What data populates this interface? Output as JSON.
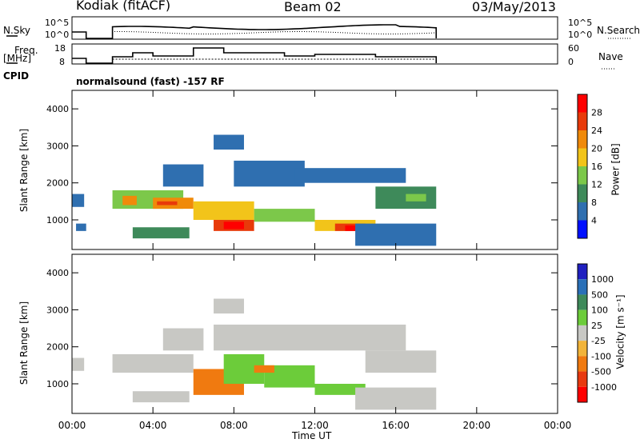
{
  "header": {
    "station": "Kodiak (fitACF)",
    "beam": "Beam 02",
    "date": "03/May/2013"
  },
  "nsky_panel": {
    "left_label": "N.Sky",
    "right_label": "N.Search",
    "y_ticks_left": [
      "10^5",
      "10^0"
    ],
    "y_ticks_right": [
      "10^5",
      "10^0"
    ]
  },
  "freq_panel": {
    "left_label_line1": "Freq.",
    "left_label_line2": "[MHz]",
    "right_label": "Nave",
    "y_ticks_left": [
      "18",
      "8"
    ],
    "y_ticks_right": [
      "60",
      "0"
    ]
  },
  "cpid": {
    "label": "CPID",
    "text": "normalsound (fast) -157 RF"
  },
  "power_panel": {
    "ylabel": "Slant Range [km]",
    "y_ticks": [
      "4000",
      "3000",
      "2000",
      "1000"
    ],
    "colorbar_label": "Power [dB]",
    "colorbar_ticks": [
      "28",
      "24",
      "20",
      "16",
      "12",
      "8",
      "4"
    ],
    "colors": [
      "#ff0000",
      "#e83a0a",
      "#f08a0a",
      "#f2c41a",
      "#7cc84a",
      "#3e8a5a",
      "#2f6fb0",
      "#0010ff"
    ]
  },
  "velocity_panel": {
    "ylabel": "Slant Range [km]",
    "y_ticks": [
      "4000",
      "3000",
      "2000",
      "1000"
    ],
    "colorbar_label": "Velocity [m s⁻¹]",
    "colorbar_ticks": [
      "1000",
      "500",
      "100",
      "25",
      "-25",
      "-100",
      "-500",
      "-1000"
    ],
    "colors": [
      "#2020c0",
      "#2a70b8",
      "#3e8a5a",
      "#6ccc3a",
      "#c8c8c4",
      "#f2b43a",
      "#f07a10",
      "#e83a10",
      "#ff0000"
    ]
  },
  "x_axis": {
    "label": "Time UT",
    "ticks": [
      "00:00",
      "04:00",
      "08:00",
      "12:00",
      "16:00",
      "20:00",
      "00:00"
    ]
  },
  "chart_data": {
    "type": "heatmap",
    "x_range_hours": [
      0,
      24
    ],
    "y_range_km": [
      200,
      4500
    ],
    "data_end_hour": 18,
    "power_regions": [
      {
        "t0": 0.0,
        "t1": 0.6,
        "r0": 1350,
        "r1": 1700,
        "level": 6
      },
      {
        "t0": 0.2,
        "t1": 0.7,
        "r0": 700,
        "r1": 900,
        "level": 6
      },
      {
        "t0": 2.0,
        "t1": 5.5,
        "r0": 1300,
        "r1": 1800,
        "level": 4
      },
      {
        "t0": 2.5,
        "t1": 3.2,
        "r0": 1400,
        "r1": 1650,
        "level": 2
      },
      {
        "t0": 4.0,
        "t1": 6.0,
        "r0": 1300,
        "r1": 1600,
        "level": 2
      },
      {
        "t0": 4.2,
        "t1": 5.2,
        "r0": 1400,
        "r1": 1500,
        "level": 1
      },
      {
        "t0": 3.0,
        "t1": 5.8,
        "r0": 500,
        "r1": 800,
        "level": 5
      },
      {
        "t0": 4.5,
        "t1": 6.5,
        "r0": 1900,
        "r1": 2500,
        "level": 6
      },
      {
        "t0": 6.0,
        "t1": 9.0,
        "r0": 1000,
        "r1": 1500,
        "level": 3
      },
      {
        "t0": 7.0,
        "t1": 9.0,
        "r0": 700,
        "r1": 1000,
        "level": 1
      },
      {
        "t0": 7.5,
        "t1": 8.5,
        "r0": 750,
        "r1": 950,
        "level": 0
      },
      {
        "t0": 9.0,
        "t1": 12.0,
        "r0": 950,
        "r1": 1300,
        "level": 4
      },
      {
        "t0": 12.0,
        "t1": 15.0,
        "r0": 700,
        "r1": 1000,
        "level": 3
      },
      {
        "t0": 13.0,
        "t1": 14.5,
        "r0": 700,
        "r1": 900,
        "level": 1
      },
      {
        "t0": 13.5,
        "t1": 14.0,
        "r0": 700,
        "r1": 850,
        "level": 0
      },
      {
        "t0": 7.0,
        "t1": 8.5,
        "r0": 2900,
        "r1": 3300,
        "level": 6
      },
      {
        "t0": 8.0,
        "t1": 11.5,
        "r0": 1900,
        "r1": 2600,
        "level": 6
      },
      {
        "t0": 11.0,
        "t1": 16.5,
        "r0": 2000,
        "r1": 2400,
        "level": 6
      },
      {
        "t0": 15.0,
        "t1": 18.0,
        "r0": 1300,
        "r1": 1900,
        "level": 5
      },
      {
        "t0": 16.5,
        "t1": 17.5,
        "r0": 1500,
        "r1": 1700,
        "level": 4
      },
      {
        "t0": 14.0,
        "t1": 18.0,
        "r0": 300,
        "r1": 900,
        "level": 6
      }
    ],
    "velocity_regions": [
      {
        "t0": 0.0,
        "t1": 0.6,
        "r0": 1350,
        "r1": 1700,
        "level": 4
      },
      {
        "t0": 2.0,
        "t1": 6.0,
        "r0": 1300,
        "r1": 1800,
        "level": 4
      },
      {
        "t0": 3.0,
        "t1": 5.8,
        "r0": 500,
        "r1": 800,
        "level": 4
      },
      {
        "t0": 4.5,
        "t1": 6.5,
        "r0": 1900,
        "r1": 2500,
        "level": 4
      },
      {
        "t0": 6.0,
        "t1": 8.5,
        "r0": 700,
        "r1": 1400,
        "level": 6
      },
      {
        "t0": 7.5,
        "t1": 9.5,
        "r0": 1000,
        "r1": 1800,
        "level": 3
      },
      {
        "t0": 9.5,
        "t1": 12.0,
        "r0": 900,
        "r1": 1500,
        "level": 3
      },
      {
        "t0": 9.0,
        "t1": 10.0,
        "r0": 1300,
        "r1": 1500,
        "level": 6
      },
      {
        "t0": 12.0,
        "t1": 14.5,
        "r0": 700,
        "r1": 1000,
        "level": 3
      },
      {
        "t0": 7.0,
        "t1": 16.5,
        "r0": 1900,
        "r1": 2600,
        "level": 4
      },
      {
        "t0": 14.5,
        "t1": 18.0,
        "r0": 1300,
        "r1": 1900,
        "level": 4
      },
      {
        "t0": 14.0,
        "t1": 18.0,
        "r0": 300,
        "r1": 900,
        "level": 4
      },
      {
        "t0": 7.0,
        "t1": 8.5,
        "r0": 2900,
        "r1": 3300,
        "level": 4
      }
    ]
  }
}
